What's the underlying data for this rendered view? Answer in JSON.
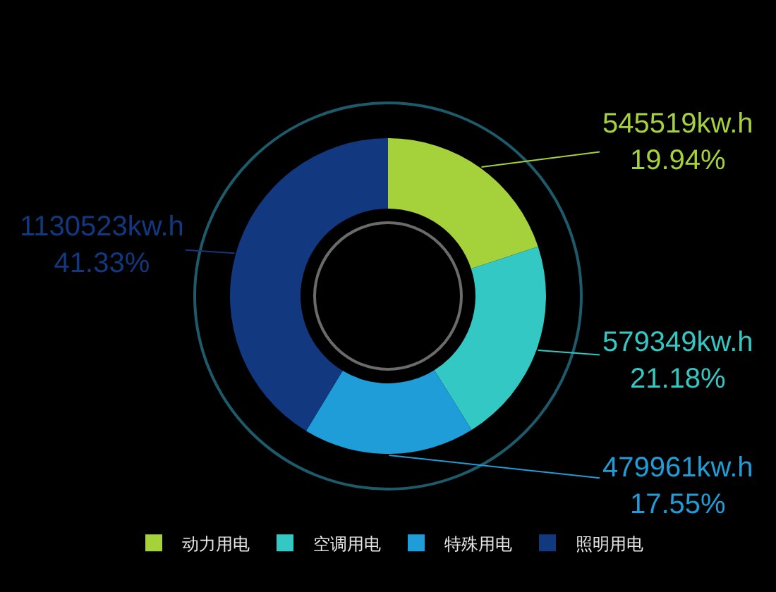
{
  "chart_data": {
    "type": "donut",
    "categories": [
      "动力用电",
      "空调用电",
      "特殊用电",
      "照明用电"
    ],
    "values": [
      19.94,
      21.18,
      17.55,
      41.33
    ],
    "value_labels": [
      "545519kw.h\n19.94%",
      "579349kw.h\n21.18%",
      "479961kw.h\n17.55%",
      "1130523kw.h\n41.33%"
    ],
    "colors": [
      "#a5d13b",
      "#33c8c3",
      "#1f9dd8",
      "#12387f"
    ],
    "legend": "bottom"
  }
}
